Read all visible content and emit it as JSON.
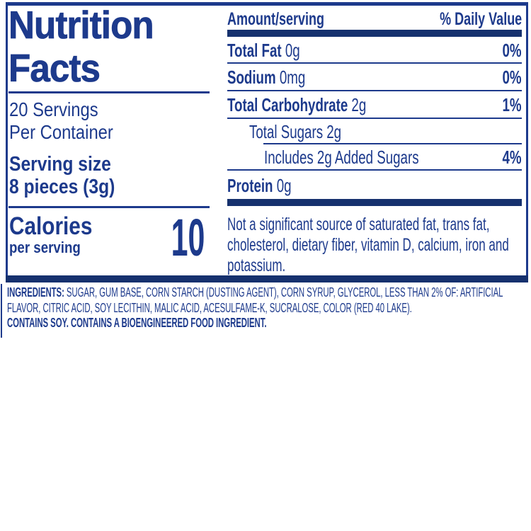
{
  "colors": {
    "ink": "#1d3a8c",
    "bar": "#16316e",
    "background": "#ffffff"
  },
  "left": {
    "title_line1": "Nutrition",
    "title_line2": "Facts",
    "servings_line1": "20 Servings",
    "servings_line2": "Per Container",
    "serving_size_line1": "Serving size",
    "serving_size_line2": "8 pieces (3g)",
    "calories_label": "Calories",
    "calories_sub": "per serving",
    "calories_value": "10"
  },
  "right": {
    "header_left": "Amount/serving",
    "header_right": "% Daily Value",
    "rows": [
      {
        "bold": "Total Fat",
        "rest": " 0g",
        "dv": "0%"
      },
      {
        "bold": "Sodium",
        "rest": " 0mg",
        "dv": "0%"
      },
      {
        "bold": "Total Carbohydrate",
        "rest": " 2g",
        "dv": "1%"
      },
      {
        "bold": "",
        "rest": "Total Sugars 2g",
        "dv": ""
      },
      {
        "bold": "",
        "rest": "Includes 2g Added Sugars",
        "dv": "4%"
      },
      {
        "bold": "Protein",
        "rest": " 0g",
        "dv": ""
      }
    ],
    "footnote": "Not a significant source of saturated fat, trans fat, cholesterol, dietary fiber, vitamin D, calcium, iron and potassium."
  },
  "ingredients": {
    "label": "INGREDIENTS:",
    "text": " SUGAR, GUM BASE, CORN STARCH (DUSTING AGENT), CORN SYRUP, GLYCEROL, LESS THAN 2% OF: ARTIFICIAL FLAVOR, CITRIC ACID, SOY LECITHIN, MALIC ACID, ACESULFAME-K, SUCRALOSE, COLOR (RED 40 LAKE).",
    "allergen": "CONTAINS SOY. CONTAINS A BIOENGINEERED FOOD INGREDIENT."
  }
}
